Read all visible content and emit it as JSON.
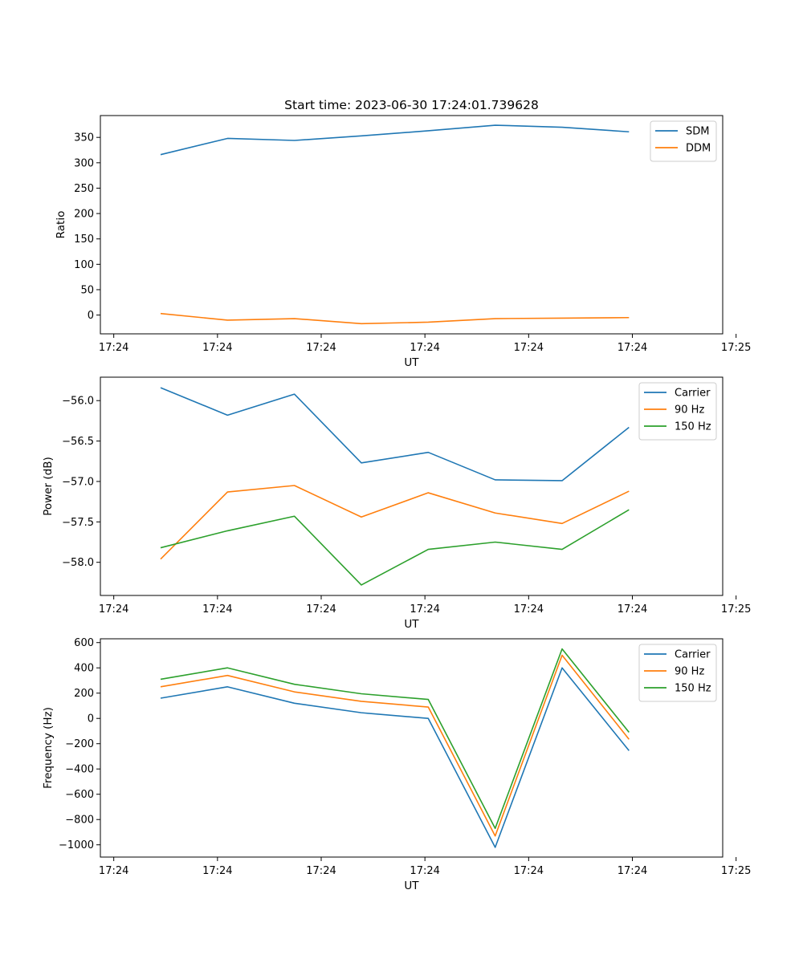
{
  "chart_data": [
    {
      "type": "line",
      "title": "Start time: 2023-06-30 17:24:01.739628",
      "xlabel": "UT",
      "ylabel": "Ratio",
      "x": [
        1.5,
        2.5,
        3.5,
        4.5,
        5.5,
        6.5,
        7.5,
        8.5
      ],
      "xlim": [
        0.6,
        9.9
      ],
      "x_ticks": [
        0.8,
        2.35,
        3.9,
        5.45,
        7.0,
        8.55,
        10.1
      ],
      "x_tick_labels": [
        "17:24",
        "17:24",
        "17:24",
        "17:24",
        "17:24",
        "17:24",
        "17:25"
      ],
      "ylim": [
        -37,
        393
      ],
      "y_ticks": [
        0,
        50,
        100,
        150,
        200,
        250,
        300,
        350
      ],
      "y_tick_labels": [
        "0",
        "50",
        "100",
        "150",
        "200",
        "250",
        "300",
        "350"
      ],
      "grid": false,
      "legend": "top-right",
      "series": [
        {
          "name": "SDM",
          "color": "#1f77b4",
          "values": [
            316,
            348,
            344,
            353,
            363,
            374,
            370,
            361
          ]
        },
        {
          "name": "DDM",
          "color": "#ff7f0e",
          "values": [
            3,
            -10,
            -7,
            -17,
            -14,
            -7,
            -6,
            -5
          ]
        }
      ]
    },
    {
      "type": "line",
      "title": "",
      "xlabel": "UT",
      "ylabel": "Power (dB)",
      "x": [
        1.5,
        2.5,
        3.5,
        4.5,
        5.5,
        6.5,
        7.5,
        8.5
      ],
      "xlim": [
        0.6,
        9.9
      ],
      "x_ticks": [
        0.8,
        2.35,
        3.9,
        5.45,
        7.0,
        8.55,
        10.1
      ],
      "x_tick_labels": [
        "17:24",
        "17:24",
        "17:24",
        "17:24",
        "17:24",
        "17:24",
        "17:25"
      ],
      "ylim": [
        -58.41,
        -55.71
      ],
      "y_ticks": [
        -58.0,
        -57.5,
        -57.0,
        -56.5,
        -56.0
      ],
      "y_tick_labels": [
        "−58.0",
        "−57.5",
        "−57.0",
        "−56.5",
        "−56.0"
      ],
      "grid": false,
      "legend": "top-right",
      "series": [
        {
          "name": "Carrier",
          "color": "#1f77b4",
          "values": [
            -55.84,
            -56.18,
            -55.92,
            -56.77,
            -56.64,
            -56.98,
            -56.99,
            -56.33
          ]
        },
        {
          "name": "90 Hz",
          "color": "#ff7f0e",
          "values": [
            -57.96,
            -57.13,
            -57.05,
            -57.44,
            -57.14,
            -57.39,
            -57.52,
            -57.12
          ]
        },
        {
          "name": "150 Hz",
          "color": "#2ca02c",
          "values": [
            -57.82,
            -57.61,
            -57.43,
            -58.28,
            -57.84,
            -57.75,
            -57.84,
            -57.35
          ]
        }
      ]
    },
    {
      "type": "line",
      "title": "",
      "xlabel": "UT",
      "ylabel": "Frequency (Hz)",
      "x": [
        1.5,
        2.5,
        3.5,
        4.5,
        5.5,
        6.5,
        7.5,
        8.5
      ],
      "xlim": [
        0.6,
        9.9
      ],
      "x_ticks": [
        0.8,
        2.35,
        3.9,
        5.45,
        7.0,
        8.55,
        10.1
      ],
      "x_tick_labels": [
        "17:24",
        "17:24",
        "17:24",
        "17:24",
        "17:24",
        "17:24",
        "17:25"
      ],
      "ylim": [
        -1097,
        630
      ],
      "y_ticks": [
        -1000,
        -800,
        -600,
        -400,
        -200,
        0,
        200,
        400,
        600
      ],
      "y_tick_labels": [
        "−1000",
        "−800",
        "−600",
        "−400",
        "−200",
        "0",
        "200",
        "400",
        "600"
      ],
      "grid": false,
      "legend": "top-right",
      "series": [
        {
          "name": "Carrier",
          "color": "#1f77b4",
          "values": [
            160,
            250,
            120,
            45,
            0,
            -1020,
            400,
            -255
          ]
        },
        {
          "name": "90 Hz",
          "color": "#ff7f0e",
          "values": [
            250,
            340,
            210,
            135,
            90,
            -930,
            500,
            -165
          ]
        },
        {
          "name": "150 Hz",
          "color": "#2ca02c",
          "values": [
            310,
            400,
            270,
            195,
            150,
            -870,
            550,
            -110
          ]
        }
      ]
    }
  ]
}
